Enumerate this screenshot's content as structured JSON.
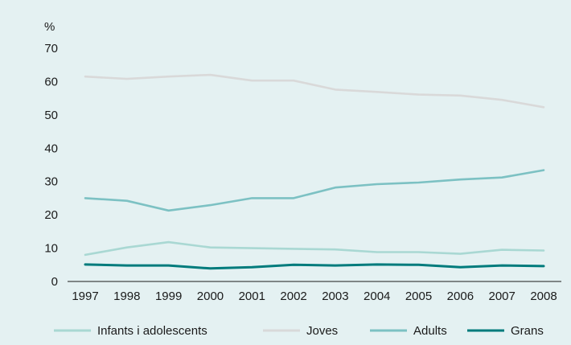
{
  "chart_data": {
    "type": "line",
    "ylabel": "%",
    "ylim": [
      0,
      70
    ],
    "yticks": [
      0,
      10,
      20,
      30,
      40,
      50,
      60,
      70
    ],
    "categories": [
      "1997",
      "1998",
      "1999",
      "2000",
      "2001",
      "2002",
      "2003",
      "2004",
      "2005",
      "2006",
      "2007",
      "2008"
    ],
    "grid": false,
    "legend_position": "bottom",
    "series": [
      {
        "name": "Infants i adolescents",
        "color": "#a9d8d3",
        "values": [
          8.0,
          10.2,
          11.8,
          10.2,
          10.0,
          9.8,
          9.6,
          8.8,
          8.8,
          8.3,
          9.5,
          9.3
        ]
      },
      {
        "name": "Joves",
        "color": "#d9d9d9",
        "values": [
          61.5,
          60.8,
          61.5,
          62.0,
          60.3,
          60.3,
          57.6,
          56.9,
          56.1,
          55.8,
          54.5,
          52.3
        ]
      },
      {
        "name": "Adults",
        "color": "#7cc1c3",
        "values": [
          25.0,
          24.2,
          21.3,
          22.9,
          25.0,
          25.0,
          28.2,
          29.2,
          29.7,
          30.6,
          31.2,
          33.4
        ]
      },
      {
        "name": "Grans",
        "color": "#007b7c",
        "values": [
          5.1,
          4.8,
          4.8,
          3.9,
          4.3,
          5.0,
          4.8,
          5.1,
          5.0,
          4.3,
          4.8,
          4.6
        ]
      }
    ]
  }
}
